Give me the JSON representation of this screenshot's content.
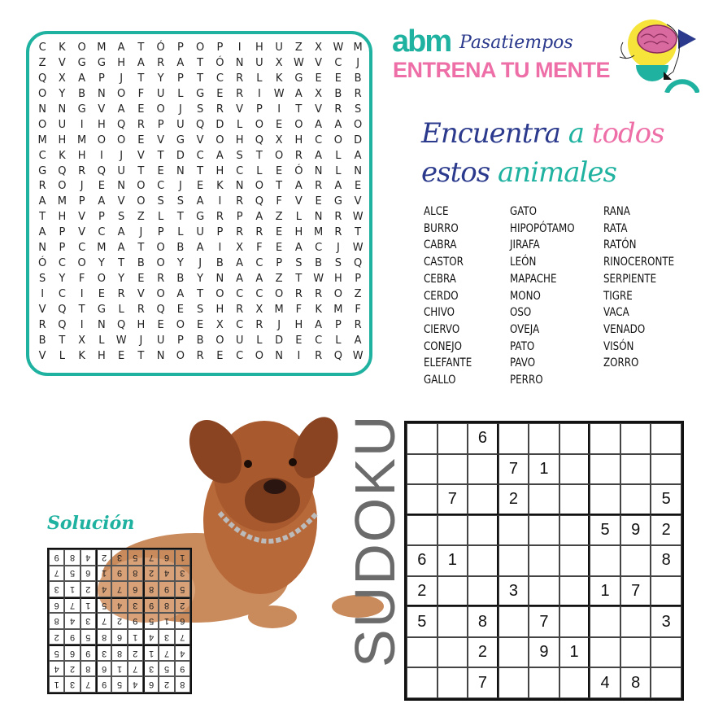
{
  "header": {
    "brand": "abm",
    "subtitle": "Pasatiempos",
    "tagline": "ENTRENA TU MENTE"
  },
  "wordsearch": {
    "title": {
      "part1": "Encuentra",
      "part2": "a",
      "part3": "todos",
      "part4": "estos",
      "part5": "animales"
    },
    "rows": [
      "CKOMATÓPOPIHUZXWM",
      "ZVGGHARATÓNUXWVCJ",
      "QXAPJTYPTCRLKGEEB",
      "OYBNOFULGERIWAXBR",
      "NNGVAEOJSRVPITVRS",
      "OUIHQRPUQDLOEOAAO",
      "MHMOOEVGVOHQXHCOD",
      "CKHIJVTDCASTORALA",
      "GQRQUTENTHCLEÓNLN",
      "ROJENOCJEKNOTARAE",
      "AMPAVOSSAIRQFVEGV",
      "THVPSZLTGRPAZLNRW",
      "APVCAJPLUPRREHMRT",
      "NPCMATOBAIXFEACJW",
      "ÓCOYTBOYJBACPSBSQ",
      "SYFOYERBYNAAZTWHP",
      "ICIERVOATOCCORROZ",
      "VQTGLRQESHRXMFKMF",
      "RQINQHEOEXCRJHAPR",
      "BTXLWJUPBOULDECLA",
      "VLKHETNORECONIRQW"
    ],
    "words": [
      [
        "ALCE",
        "BURRO",
        "CABRA",
        "CASTOR",
        "CEBRA",
        "CERDO",
        "CHIVO",
        "CIERVO",
        "CONEJO",
        "ELEFANTE",
        "GALLO"
      ],
      [
        "GATO",
        "HIPOPÓTAMO",
        "JIRAFA",
        "LEÓN",
        "MAPACHE",
        "MONO",
        "OSO",
        "OVEJA",
        "PATO",
        "PAVO",
        "PERRO"
      ],
      [
        "RANA",
        "RATA",
        "RATÓN",
        "RINOCERONTE",
        "SERPIENTE",
        "TIGRE",
        "VACA",
        "VENADO",
        "VISÓN",
        "ZORRO"
      ]
    ]
  },
  "sudoku": {
    "title": "SUDOKU",
    "grid": [
      [
        "",
        "",
        "6",
        "",
        "",
        "",
        "",
        "",
        ""
      ],
      [
        "",
        "",
        "",
        "7",
        "1",
        "",
        "",
        "",
        ""
      ],
      [
        "",
        "7",
        "",
        "2",
        "",
        "",
        "",
        "",
        "5"
      ],
      [
        "",
        "",
        "",
        "",
        "",
        "",
        "5",
        "9",
        "2"
      ],
      [
        "6",
        "1",
        "",
        "",
        "",
        "",
        "",
        "",
        "8"
      ],
      [
        "2",
        "",
        "",
        "3",
        "",
        "",
        "1",
        "7",
        ""
      ],
      [
        "5",
        "",
        "8",
        "",
        "7",
        "",
        "",
        "",
        "3"
      ],
      [
        "",
        "",
        "2",
        "",
        "9",
        "1",
        "",
        "",
        ""
      ],
      [
        "",
        "",
        "7",
        "",
        "",
        "",
        "4",
        "8",
        ""
      ]
    ]
  },
  "solution": {
    "title": "Solución",
    "grid": [
      [
        "8",
        "2",
        "6",
        "4",
        "5",
        "9",
        "7",
        "3",
        "1"
      ],
      [
        "9",
        "5",
        "3",
        "7",
        "1",
        "6",
        "8",
        "2",
        "4"
      ],
      [
        "4",
        "7",
        "1",
        "2",
        "8",
        "3",
        "9",
        "6",
        "5"
      ],
      [
        "7",
        "3",
        "4",
        "1",
        "6",
        "8",
        "5",
        "9",
        "2"
      ],
      [
        "6",
        "1",
        "5",
        "9",
        "2",
        "7",
        "3",
        "4",
        "8"
      ],
      [
        "2",
        "8",
        "9",
        "3",
        "4",
        "5",
        "1",
        "7",
        "6"
      ],
      [
        "5",
        "9",
        "8",
        "6",
        "7",
        "4",
        "2",
        "1",
        "3"
      ],
      [
        "3",
        "4",
        "2",
        "8",
        "9",
        "1",
        "6",
        "5",
        "7"
      ],
      [
        "1",
        "6",
        "7",
        "5",
        "3",
        "2",
        "4",
        "8",
        "9"
      ]
    ],
    "orientation": "upside-down"
  },
  "colors": {
    "teal": "#1fb2a0",
    "pink": "#ee6fa7",
    "navy": "#2b3a8c"
  }
}
